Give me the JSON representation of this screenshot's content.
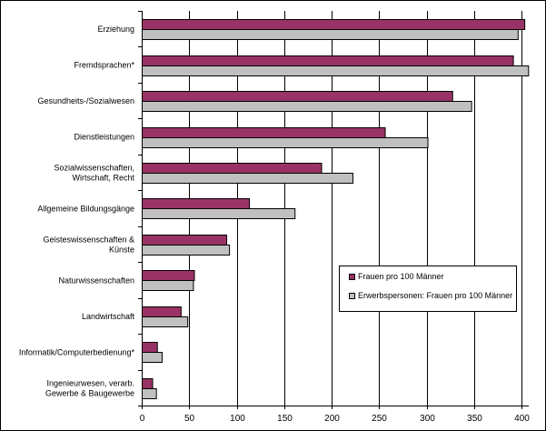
{
  "chart_data": {
    "type": "bar",
    "orientation": "horizontal",
    "title": "",
    "xlabel": "",
    "ylabel": "",
    "xlim": [
      0,
      400
    ],
    "x_ticks": [
      "0",
      "50",
      "100",
      "150",
      "200",
      "250",
      "300",
      "350",
      "400"
    ],
    "x_tick_values": [
      0,
      50,
      100,
      150,
      200,
      250,
      300,
      350,
      400
    ],
    "grid": true,
    "legend_position": "bottom-right",
    "categories": [
      [
        "Erziehung"
      ],
      [
        "Fremdsprachen*"
      ],
      [
        "Gesundheits-/Sozialwesen"
      ],
      [
        "Dienstleistungen"
      ],
      [
        "Sozialwissenschaften,",
        "Wirtschaft, Recht"
      ],
      [
        "Allgemeine Bildungsgänge"
      ],
      [
        "Geisteswissenschaften &",
        "Künste"
      ],
      [
        "Naturwissenschaften"
      ],
      [
        "Landwirtschaft"
      ],
      [
        "Informatik/Computerbedienung*"
      ],
      [
        "Ingenieurwesen, verarb.",
        "Gewerbe & Baugewerbe"
      ]
    ],
    "series": [
      {
        "name": "Frauen pro 100 Männer",
        "color": "#993366",
        "values": [
          403,
          391,
          327,
          256,
          189,
          113,
          89,
          55,
          41,
          16,
          11
        ]
      },
      {
        "name": "Erwerbspersonen: Frauen pro 100 Männer",
        "color": "#c0c0c0",
        "values": [
          396,
          407,
          347,
          301,
          222,
          161,
          92,
          54,
          48,
          21,
          15
        ]
      }
    ]
  }
}
